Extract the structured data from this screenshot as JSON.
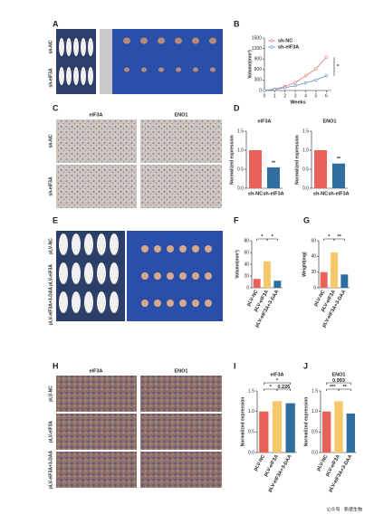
{
  "figure": {
    "panels": [
      "A",
      "B",
      "C",
      "D",
      "E",
      "F",
      "G",
      "H",
      "I",
      "J"
    ],
    "A_rows": [
      "sh-NC",
      "sh-eIF3A"
    ],
    "C_columns": [
      "eIF3A",
      "ENO1"
    ],
    "C_rows": [
      "sh-NC",
      "sh-eIF3A"
    ],
    "E_rows": [
      "pLV-NC",
      "pLV-eIF3A",
      "pLV-eIF3A+3-DAA"
    ],
    "H_columns": [
      "eIF3A",
      "ENO1"
    ],
    "H_rows": [
      "pLV-NC",
      "pLV-eIF3A",
      "pLV-eIF3A+3-DAA"
    ],
    "watermark": "公众号 · 新使生物"
  },
  "chart_data": [
    {
      "type": "line",
      "x": [
        0,
        1,
        2,
        3,
        4,
        5,
        6
      ],
      "xlim": [
        0,
        6.5
      ],
      "xticks": [
        0,
        1,
        2,
        3,
        4,
        5,
        6
      ],
      "xlabel": "Weeks",
      "ylabel": "Volume(mm³)",
      "ylim": [
        0,
        1500
      ],
      "yticks": [
        0,
        300,
        600,
        900,
        1200,
        1500
      ],
      "legend": "upper left",
      "annotations": [
        "*"
      ],
      "series": [
        {
          "name": "sh-NC",
          "color": "#e8786f",
          "values": [
            0,
            40,
            120,
            230,
            420,
            620,
            950
          ]
        },
        {
          "name": "sh-eIF3A",
          "color": "#5b8fc7",
          "values": [
            0,
            30,
            80,
            140,
            220,
            300,
            420
          ]
        }
      ]
    },
    {
      "type": "bar",
      "title": "eIF3A",
      "ylabel": "Normalized expression",
      "categories": [
        "sh-NC",
        "sh-eIF3A"
      ],
      "values": [
        1.0,
        0.55
      ],
      "colors": [
        "#e8625a",
        "#2e6fa0"
      ],
      "ylim": [
        0,
        1.5
      ],
      "yticks": [
        {
          "value": 0,
          "label": "0.0"
        },
        {
          "value": 0.5,
          "label": "0.5"
        },
        {
          "value": 1,
          "label": "1.0"
        },
        {
          "value": 1.5,
          "label": "1.5"
        }
      ],
      "annotations": [
        "**"
      ]
    },
    {
      "type": "bar",
      "title": "ENO1",
      "ylabel": "Normalized expression",
      "categories": [
        "sh-NC",
        "sh-eIF3A"
      ],
      "values": [
        1.0,
        0.65
      ],
      "colors": [
        "#e8625a",
        "#2e6fa0"
      ],
      "ylim": [
        0,
        1.5
      ],
      "yticks": [
        {
          "value": 0,
          "label": "0.0"
        },
        {
          "value": 0.5,
          "label": "0.5"
        },
        {
          "value": 1,
          "label": "1.0"
        },
        {
          "value": 1.5,
          "label": "1.5"
        }
      ],
      "annotations": [
        "**"
      ]
    },
    {
      "type": "bar",
      "ylabel": "Volume(mm³)",
      "categories": [
        "pLV-NC",
        "pLV-eIF3A",
        "pLV-eIF3A+3-DAA"
      ],
      "values": [
        15,
        45,
        12
      ],
      "colors": [
        "#e8625a",
        "#f5c96a",
        "#2e6fa0"
      ],
      "ylim": [
        0,
        80
      ],
      "yticks": [
        0,
        20,
        40,
        60,
        80
      ],
      "annotations": [
        "*",
        "*"
      ]
    },
    {
      "type": "bar",
      "ylabel": "Weight(mg)",
      "categories": [
        "pLV-NC",
        "pLV-eIF3A",
        "pLV-eIF3A+3-DAA"
      ],
      "values": [
        20,
        45,
        17
      ],
      "colors": [
        "#e8625a",
        "#f5c96a",
        "#2e6fa0"
      ],
      "ylim": [
        0,
        60
      ],
      "yticks": [
        0,
        20,
        40,
        60
      ],
      "annotations": [
        "*",
        "**"
      ]
    },
    {
      "type": "bar",
      "title": "eIF3A",
      "ylabel": "Normalized expression",
      "categories": [
        "pLV-NC",
        "pLV-eIF3A",
        "pLV-eIF3A+3-DAA"
      ],
      "values": [
        1.0,
        1.25,
        1.2
      ],
      "colors": [
        "#e8625a",
        "#f5c96a",
        "#2e6fa0"
      ],
      "ylim": [
        0,
        1.5
      ],
      "yticks": [
        {
          "value": 0,
          "label": "0.0"
        },
        {
          "value": 0.5,
          "label": "0.5"
        },
        {
          "value": 1,
          "label": "1.0"
        },
        {
          "value": 1.5,
          "label": "1.5"
        }
      ],
      "annotations": [
        "*",
        "*",
        "0.226"
      ]
    },
    {
      "type": "bar",
      "title": "ENO1",
      "ylabel": "Normalized expression",
      "categories": [
        "pLV-NC",
        "pLV-eIF3A",
        "pLV-eIF3A+3-DAA"
      ],
      "values": [
        1.0,
        1.25,
        0.95
      ],
      "colors": [
        "#e8625a",
        "#f5c96a",
        "#2e6fa0"
      ],
      "ylim": [
        0,
        1.5
      ],
      "yticks": [
        {
          "value": 0,
          "label": "0.0"
        },
        {
          "value": 0.5,
          "label": "0.5"
        },
        {
          "value": 1,
          "label": "1.0"
        },
        {
          "value": 1.5,
          "label": "1.5"
        }
      ],
      "annotations": [
        "0.993",
        "***",
        "**"
      ]
    }
  ]
}
